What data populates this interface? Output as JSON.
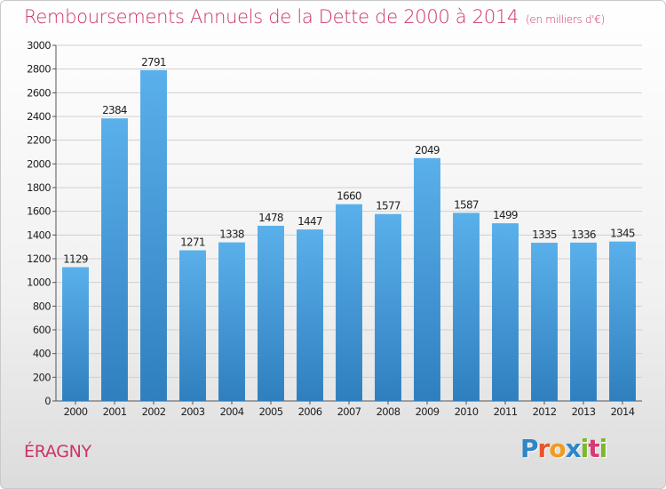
{
  "header": {
    "title": "Remboursements Annuels de la Dette de 2000 à 2014",
    "unit": "(en milliers d'€)"
  },
  "footer": {
    "city": "ÉRAGNY",
    "logo_letters": [
      "P",
      "r",
      "o",
      "x",
      "i",
      "t",
      "i"
    ],
    "logo_colors": [
      "#2e86c8",
      "#e8542a",
      "#f29b1f",
      "#2e86c8",
      "#7ab929",
      "#d63a73",
      "#7ab929"
    ]
  },
  "colors": {
    "bar_top": "#5ab0ea",
    "bar_bottom": "#2f7fbf",
    "title": "#cc3366",
    "grid": "#d0d0d0"
  },
  "chart_data": {
    "type": "bar",
    "title": "Remboursements Annuels de la Dette de 2000 à 2014",
    "subtitle": "(en milliers d'€)",
    "categories": [
      "2000",
      "2001",
      "2002",
      "2003",
      "2004",
      "2005",
      "2006",
      "2007",
      "2008",
      "2009",
      "2010",
      "2011",
      "2012",
      "2013",
      "2014"
    ],
    "values": [
      1129,
      2384,
      2791,
      1271,
      1338,
      1478,
      1447,
      1660,
      1577,
      2049,
      1587,
      1499,
      1335,
      1336,
      1345
    ],
    "ylim": [
      0,
      3000
    ],
    "ytick_step": 200,
    "grid": true,
    "legend": "none"
  }
}
